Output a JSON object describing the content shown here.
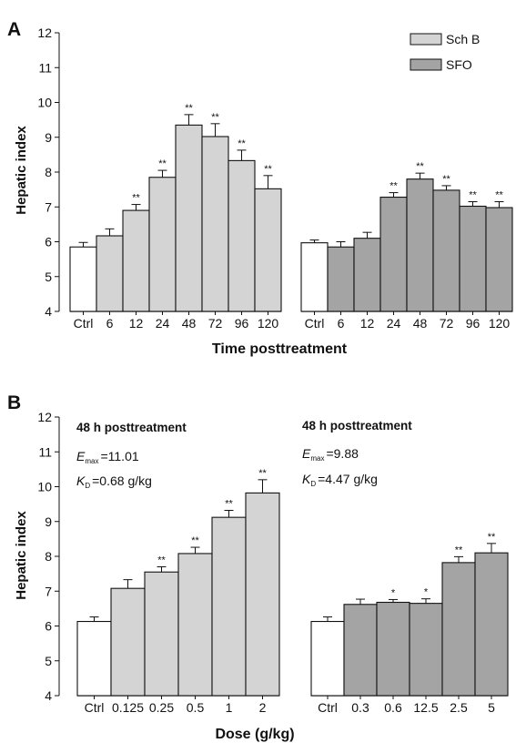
{
  "panels": {
    "a": {
      "letter": "A",
      "ylabel": "Hepatic index",
      "xlabel": "Time posttreatment",
      "legend": {
        "items": [
          {
            "label": "Sch B",
            "color": "#d4d4d4"
          },
          {
            "label": "SFO",
            "color": "#a4a4a4"
          }
        ]
      }
    },
    "b": {
      "letter": "B",
      "ylabel": "Hepatic index",
      "xlabel": "Dose (g/kg)",
      "left_note": {
        "title": "48 h posttreatment",
        "emax_sym": "E",
        "emax_sub": "max",
        "emax_val": "=11.01",
        "kd_sym": "K",
        "kd_sub": "D",
        "kd_val": "=0.68 g/kg"
      },
      "right_note": {
        "title": "48 h posttreatment",
        "emax_sym": "E",
        "emax_sub": "max",
        "emax_val": "=9.88",
        "kd_sym": "K",
        "kd_sub": "D",
        "kd_val": "=4.47 g/kg"
      }
    }
  },
  "colors": {
    "ctrl": "#ffffff",
    "schb": "#d4d4d4",
    "sfo": "#a4a4a4",
    "stroke": "#111111"
  },
  "chart_data": [
    {
      "type": "bar",
      "panel": "A",
      "series": "Sch B",
      "categories": [
        "Ctrl",
        "6",
        "12",
        "24",
        "48",
        "72",
        "96",
        "120"
      ],
      "values": [
        5.85,
        6.17,
        6.9,
        7.85,
        9.35,
        9.02,
        8.33,
        7.52
      ],
      "errors": [
        0.13,
        0.2,
        0.17,
        0.2,
        0.3,
        0.37,
        0.3,
        0.38
      ],
      "significance": [
        "",
        "",
        "**",
        "**",
        "**",
        "**",
        "**",
        "**"
      ],
      "ylim": [
        4,
        12
      ],
      "yticks": [
        4,
        5,
        6,
        7,
        8,
        9,
        10,
        11,
        12
      ],
      "ylabel": "Hepatic index",
      "xlabel": "Time posttreatment"
    },
    {
      "type": "bar",
      "panel": "A",
      "series": "SFO",
      "categories": [
        "Ctrl",
        "6",
        "12",
        "24",
        "48",
        "72",
        "96",
        "120"
      ],
      "unit_label": "h",
      "values": [
        5.97,
        5.85,
        6.1,
        7.28,
        7.8,
        7.48,
        7.02,
        6.98
      ],
      "errors": [
        0.08,
        0.15,
        0.17,
        0.13,
        0.17,
        0.13,
        0.13,
        0.17
      ],
      "significance": [
        "",
        "",
        "",
        "**",
        "**",
        "**",
        "**",
        "**"
      ],
      "ylim": [
        4,
        12
      ]
    },
    {
      "type": "bar",
      "panel": "B",
      "series": "Sch B",
      "categories": [
        "Ctrl",
        "0.125",
        "0.25",
        "0.5",
        "1",
        "2"
      ],
      "values": [
        6.13,
        7.08,
        7.55,
        8.08,
        9.12,
        9.82
      ],
      "errors": [
        0.13,
        0.25,
        0.15,
        0.18,
        0.2,
        0.38
      ],
      "significance": [
        "",
        "",
        "**",
        "**",
        "**",
        "**"
      ],
      "ylim": [
        4,
        12
      ],
      "yticks": [
        4,
        5,
        6,
        7,
        8,
        9,
        10,
        11,
        12
      ],
      "ylabel": "Hepatic index",
      "xlabel": "Dose (g/kg)"
    },
    {
      "type": "bar",
      "panel": "B",
      "series": "SFO",
      "categories": [
        "Ctrl",
        "0.3",
        "0.6",
        "12.5",
        "2.5",
        "5"
      ],
      "values": [
        6.13,
        6.62,
        6.68,
        6.65,
        7.82,
        8.1
      ],
      "errors": [
        0.13,
        0.15,
        0.08,
        0.13,
        0.17,
        0.27
      ],
      "significance": [
        "",
        "",
        "*",
        "*",
        "**",
        "**"
      ],
      "ylim": [
        4,
        12
      ]
    }
  ]
}
